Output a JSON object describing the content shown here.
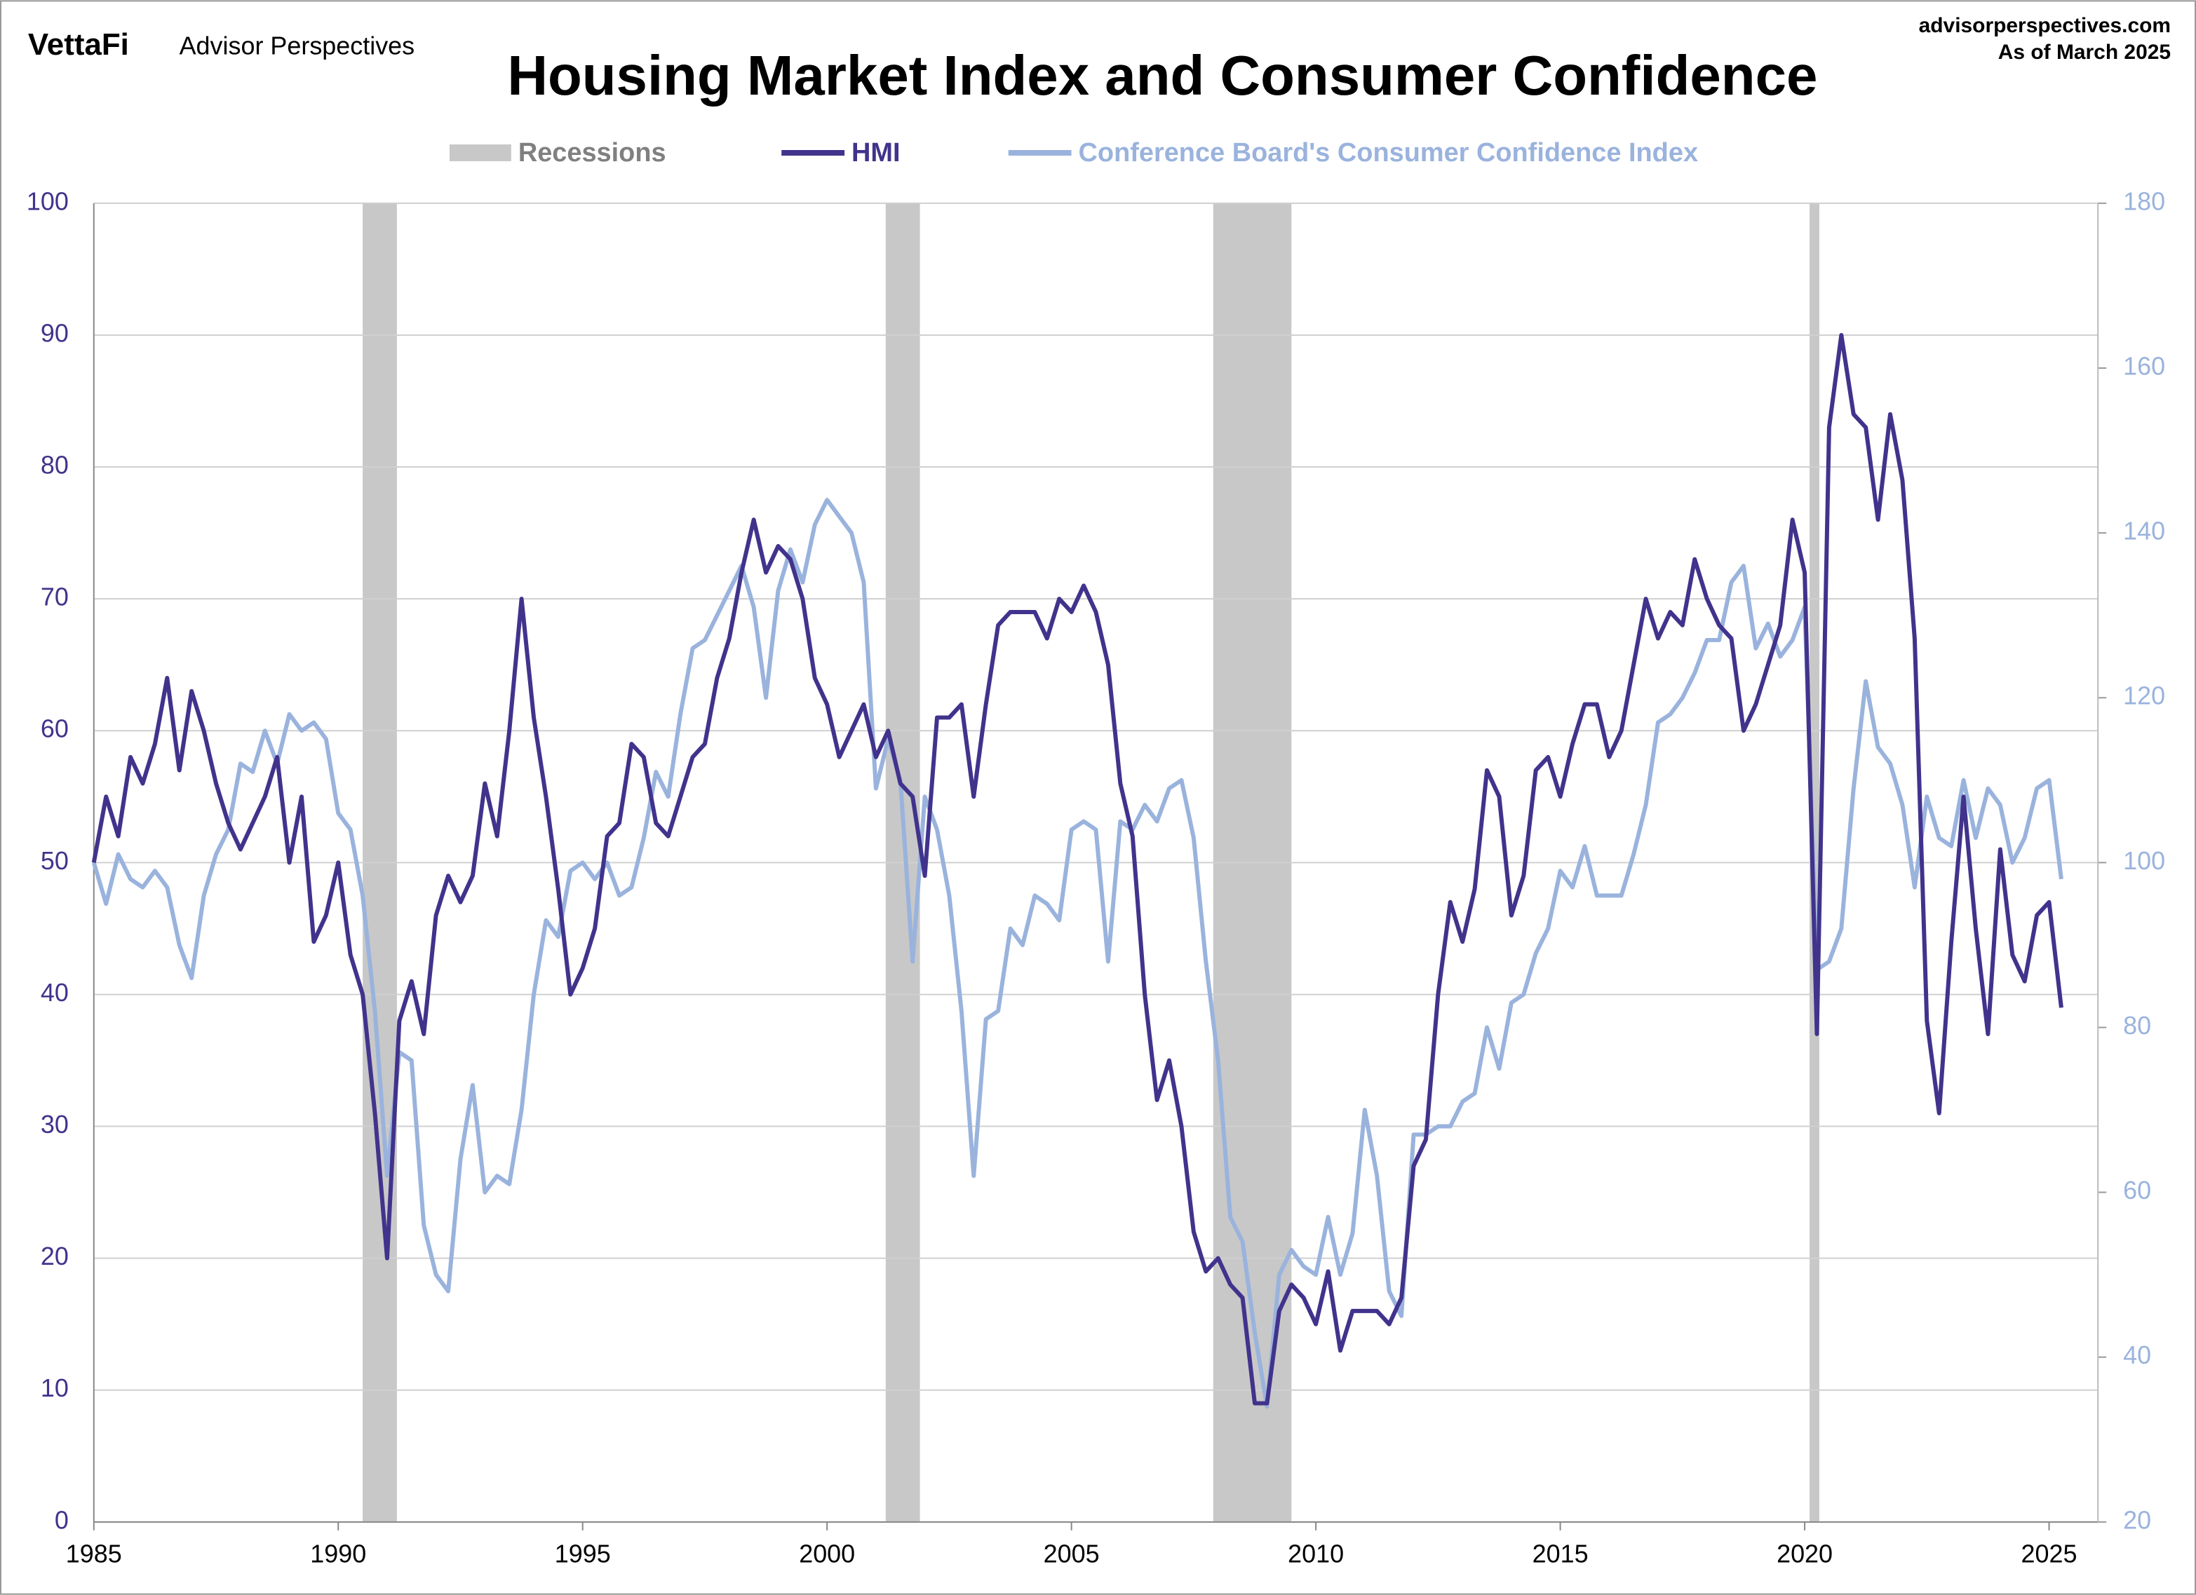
{
  "brand": "VettaFi",
  "publisher": "Advisor Perspectives",
  "site": "advisorperspectives.com",
  "as_of": "As of March 2025",
  "chart_data": {
    "type": "line",
    "title": "Housing Market Index and Consumer Confidence",
    "x": [
      1985,
      1985.25,
      1985.5,
      1985.75,
      1986,
      1986.25,
      1986.5,
      1986.75,
      1987,
      1987.25,
      1987.5,
      1987.75,
      1988,
      1988.25,
      1988.5,
      1988.75,
      1989,
      1989.25,
      1989.5,
      1989.75,
      1990,
      1990.25,
      1990.5,
      1990.75,
      1991,
      1991.25,
      1991.5,
      1991.75,
      1992,
      1992.25,
      1992.5,
      1992.75,
      1993,
      1993.25,
      1993.5,
      1993.75,
      1994,
      1994.25,
      1994.5,
      1994.75,
      1995,
      1995.25,
      1995.5,
      1995.75,
      1996,
      1996.25,
      1996.5,
      1996.75,
      1997,
      1997.25,
      1997.5,
      1997.75,
      1998,
      1998.25,
      1998.5,
      1998.75,
      1999,
      1999.25,
      1999.5,
      1999.75,
      2000,
      2000.25,
      2000.5,
      2000.75,
      2001,
      2001.25,
      2001.5,
      2001.75,
      2002,
      2002.25,
      2002.5,
      2002.75,
      2003,
      2003.25,
      2003.5,
      2003.75,
      2004,
      2004.25,
      2004.5,
      2004.75,
      2005,
      2005.25,
      2005.5,
      2005.75,
      2006,
      2006.25,
      2006.5,
      2006.75,
      2007,
      2007.25,
      2007.5,
      2007.75,
      2008,
      2008.25,
      2008.5,
      2008.75,
      2009,
      2009.25,
      2009.5,
      2009.75,
      2010,
      2010.25,
      2010.5,
      2010.75,
      2011,
      2011.25,
      2011.5,
      2011.75,
      2012,
      2012.25,
      2012.5,
      2012.75,
      2013,
      2013.25,
      2013.5,
      2013.75,
      2014,
      2014.25,
      2014.5,
      2014.75,
      2015,
      2015.25,
      2015.5,
      2015.75,
      2016,
      2016.25,
      2016.5,
      2016.75,
      2017,
      2017.25,
      2017.5,
      2017.75,
      2018,
      2018.25,
      2018.5,
      2018.75,
      2019,
      2019.25,
      2019.5,
      2019.75,
      2020,
      2020.25,
      2020.5,
      2020.75,
      2021,
      2021.25,
      2021.5,
      2021.75,
      2022,
      2022.25,
      2022.5,
      2022.75,
      2023,
      2023.25,
      2023.5,
      2023.75,
      2024,
      2024.25,
      2024.5,
      2024.75,
      2025,
      2025.25
    ],
    "series": [
      {
        "name": "HMI",
        "color": "#41338c",
        "values": [
          50,
          55,
          52,
          58,
          56,
          59,
          64,
          57,
          63,
          60,
          56,
          53,
          51,
          53,
          55,
          58,
          50,
          55,
          44,
          46,
          50,
          43,
          40,
          31,
          20,
          38,
          41,
          37,
          46,
          49,
          47,
          49,
          56,
          52,
          60,
          70,
          61,
          55,
          48,
          40,
          42,
          45,
          52,
          53,
          59,
          58,
          53,
          52,
          55,
          58,
          59,
          64,
          67,
          72,
          76,
          72,
          74,
          73,
          70,
          64,
          62,
          58,
          60,
          62,
          58,
          60,
          56,
          55,
          49,
          61,
          61,
          62,
          55,
          62,
          68,
          69,
          69,
          69,
          67,
          70,
          69,
          71,
          69,
          65,
          56,
          52,
          40,
          32,
          35,
          30,
          22,
          19,
          20,
          18,
          17,
          9,
          9,
          16,
          18,
          17,
          15,
          19,
          13,
          16,
          16,
          16,
          15,
          17,
          27,
          29,
          40,
          47,
          44,
          48,
          57,
          55,
          46,
          49,
          57,
          58,
          55,
          59,
          62,
          62,
          58,
          60,
          65,
          70,
          67,
          69,
          68,
          73,
          70,
          68,
          67,
          60,
          62,
          65,
          68,
          76,
          72,
          37,
          83,
          90,
          84,
          83,
          76,
          84,
          79,
          67,
          38,
          31,
          44,
          55,
          45,
          37,
          51,
          43,
          41,
          46,
          47,
          39
        ]
      },
      {
        "name": "Conference Board's Consumer Confidence Index",
        "color": "#9ab3dd",
        "axis": "y2",
        "values": [
          100,
          95,
          101,
          98,
          97,
          99,
          97,
          90,
          86,
          96,
          101,
          104,
          112,
          111,
          116,
          112,
          118,
          116,
          117,
          115,
          106,
          104,
          96,
          82,
          62,
          77,
          76,
          56,
          50,
          48,
          64,
          73,
          60,
          62,
          61,
          70,
          84,
          93,
          91,
          99,
          100,
          98,
          100,
          96,
          97,
          103,
          111,
          108,
          118,
          126,
          127,
          130,
          133,
          136,
          131,
          120,
          133,
          138,
          134,
          141,
          144,
          142,
          140,
          134,
          109,
          115,
          110,
          88,
          108,
          104,
          96,
          82,
          62,
          81,
          82,
          92,
          90,
          96,
          95,
          93,
          104,
          105,
          104,
          88,
          105,
          104,
          107,
          105,
          109,
          110,
          103,
          88,
          76,
          57,
          54,
          43,
          34,
          50,
          53,
          51,
          50,
          57,
          50,
          55,
          70,
          62,
          48,
          45,
          67,
          67,
          68,
          68,
          71,
          72,
          80,
          75,
          83,
          84,
          89,
          92,
          99,
          97,
          102,
          96,
          96,
          96,
          101,
          107,
          117,
          118,
          120,
          123,
          127,
          127,
          134,
          136,
          126,
          129,
          125,
          127,
          131,
          87,
          88,
          92,
          109,
          122,
          114,
          112,
          107,
          97,
          108,
          103,
          102,
          110,
          103,
          109,
          107,
          100,
          103,
          109,
          110,
          98
        ]
      }
    ],
    "recessions": {
      "name": "Recessions",
      "color": "#c8c8c8",
      "spans": [
        [
          1990.5,
          1991.2
        ],
        [
          2001.2,
          2001.9
        ],
        [
          2007.9,
          2009.5
        ],
        [
          2020.1,
          2020.3
        ]
      ]
    },
    "xlim": [
      1985,
      2026
    ],
    "xticks": [
      1985,
      1990,
      1995,
      2000,
      2005,
      2010,
      2015,
      2020,
      2025
    ],
    "ylim": [
      0,
      100
    ],
    "yticks": [
      0,
      10,
      20,
      30,
      40,
      50,
      60,
      70,
      80,
      90,
      100
    ],
    "y2lim": [
      20,
      180
    ],
    "y2ticks": [
      20,
      40,
      60,
      80,
      100,
      120,
      140,
      160,
      180
    ],
    "grid": true
  }
}
